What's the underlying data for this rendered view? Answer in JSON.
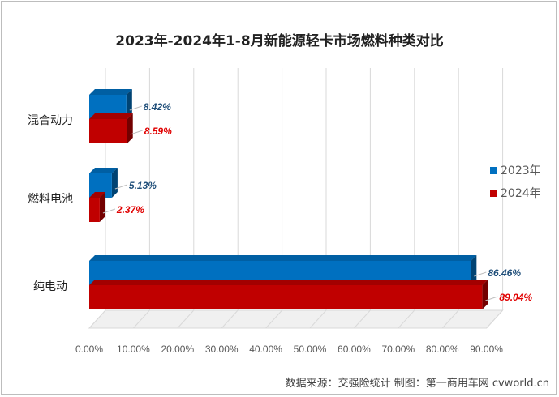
{
  "chart_data": {
    "type": "bar",
    "orientation": "horizontal",
    "style": "3d",
    "title": "2023年-2024年1-8月新能源轻卡市场燃料种类对比",
    "categories": [
      "混合动力",
      "燃料电池",
      "纯电动"
    ],
    "series": [
      {
        "name": "2023年",
        "color": "#0070c0",
        "values": [
          8.42,
          5.13,
          86.46
        ],
        "labels": [
          "8.42%",
          "5.13%",
          "86.46%"
        ]
      },
      {
        "name": "2024年",
        "color": "#c00000",
        "values": [
          8.59,
          2.37,
          89.04
        ],
        "labels": [
          "8.59%",
          "2.37%",
          "89.04%"
        ]
      }
    ],
    "xlim": [
      0,
      90
    ],
    "xticks": [
      "0.00%",
      "10.00%",
      "20.00%",
      "30.00%",
      "40.00%",
      "50.00%",
      "60.00%",
      "70.00%",
      "80.00%",
      "90.00%"
    ],
    "grid": "vertical",
    "legend": "right",
    "xlabel": "",
    "ylabel": ""
  },
  "source": "数据来源：交强险统计  制图：第一商用车网 cvworld.cn"
}
